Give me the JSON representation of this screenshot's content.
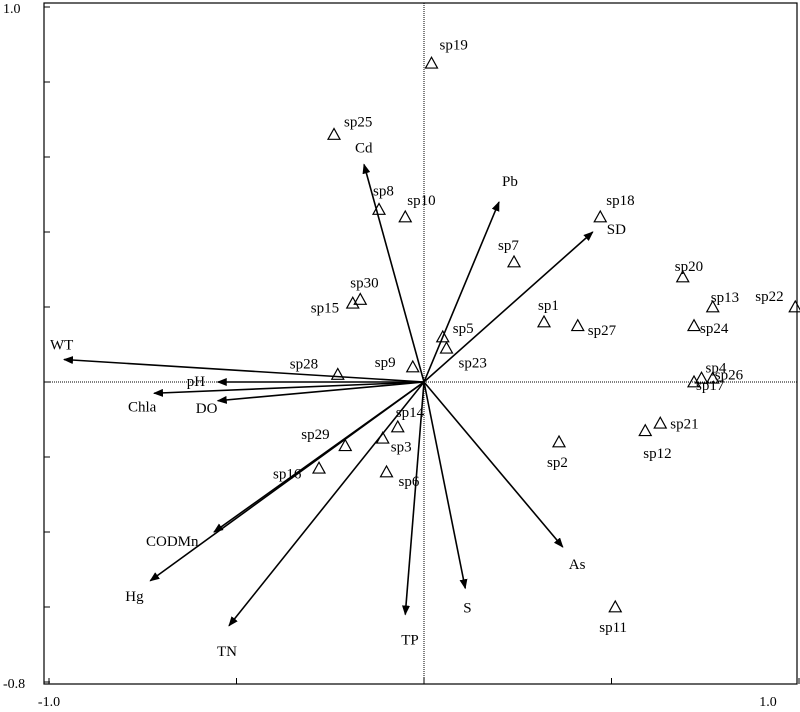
{
  "chart_data": {
    "type": "scatter",
    "title": "",
    "xlabel": "",
    "ylabel": "",
    "xlim": [
      -1.0,
      1.0
    ],
    "ylim": [
      -0.8,
      1.0
    ],
    "x_tick_labels": [
      {
        "value": -1.0,
        "label": "-1.0"
      },
      {
        "value": 1.0,
        "label": "1.0"
      }
    ],
    "y_tick_labels": [
      {
        "value": 1.0,
        "label": "1.0"
      },
      {
        "value": -0.8,
        "label": "-0.8"
      }
    ],
    "grid": false,
    "zero_lines": "dotted",
    "vectors": [
      {
        "label": "WT",
        "x": -0.96,
        "y": 0.06
      },
      {
        "label": "pH",
        "x": -0.55,
        "y": 0.0
      },
      {
        "label": "Chla",
        "x": -0.72,
        "y": -0.03
      },
      {
        "label": "DO",
        "x": -0.55,
        "y": -0.05
      },
      {
        "label": "Cd",
        "x": -0.16,
        "y": 0.58
      },
      {
        "label": "Pb",
        "x": 0.2,
        "y": 0.48
      },
      {
        "label": "SD",
        "x": 0.45,
        "y": 0.4
      },
      {
        "label": "As",
        "x": 0.37,
        "y": -0.44
      },
      {
        "label": "S",
        "x": 0.11,
        "y": -0.55
      },
      {
        "label": "TP",
        "x": -0.05,
        "y": -0.62
      },
      {
        "label": "TN",
        "x": -0.52,
        "y": -0.65
      },
      {
        "label": "Hg",
        "x": -0.73,
        "y": -0.53
      },
      {
        "label": "CODMn",
        "x": -0.56,
        "y": -0.4
      }
    ],
    "species": [
      {
        "label": "sp19",
        "x": 0.02,
        "y": 0.85
      },
      {
        "label": "sp25",
        "x": -0.24,
        "y": 0.66
      },
      {
        "label": "sp8",
        "x": -0.12,
        "y": 0.46
      },
      {
        "label": "sp10",
        "x": -0.05,
        "y": 0.44
      },
      {
        "label": "sp18",
        "x": 0.47,
        "y": 0.44
      },
      {
        "label": "sp7",
        "x": 0.24,
        "y": 0.32
      },
      {
        "label": "sp30",
        "x": -0.17,
        "y": 0.22
      },
      {
        "label": "sp15",
        "x": -0.19,
        "y": 0.21
      },
      {
        "label": "sp1",
        "x": 0.32,
        "y": 0.16
      },
      {
        "label": "sp27",
        "x": 0.41,
        "y": 0.15
      },
      {
        "label": "sp20",
        "x": 0.69,
        "y": 0.28
      },
      {
        "label": "sp13",
        "x": 0.77,
        "y": 0.2
      },
      {
        "label": "sp22",
        "x": 0.99,
        "y": 0.2
      },
      {
        "label": "sp24",
        "x": 0.72,
        "y": 0.15
      },
      {
        "label": "sp5",
        "x": 0.05,
        "y": 0.12
      },
      {
        "label": "sp23",
        "x": 0.06,
        "y": 0.09
      },
      {
        "label": "sp9",
        "x": -0.03,
        "y": 0.04
      },
      {
        "label": "sp28",
        "x": -0.23,
        "y": 0.02
      },
      {
        "label": "sp4",
        "x": 0.74,
        "y": 0.01
      },
      {
        "label": "sp26",
        "x": 0.77,
        "y": 0.01
      },
      {
        "label": "sp17",
        "x": 0.72,
        "y": 0.0
      },
      {
        "label": "sp14",
        "x": -0.07,
        "y": -0.12
      },
      {
        "label": "sp3",
        "x": -0.11,
        "y": -0.15
      },
      {
        "label": "sp29",
        "x": -0.21,
        "y": -0.17
      },
      {
        "label": "sp16",
        "x": -0.28,
        "y": -0.23
      },
      {
        "label": "sp6",
        "x": -0.1,
        "y": -0.24
      },
      {
        "label": "sp2",
        "x": 0.36,
        "y": -0.16
      },
      {
        "label": "sp21",
        "x": 0.63,
        "y": -0.11
      },
      {
        "label": "sp12",
        "x": 0.59,
        "y": -0.13
      },
      {
        "label": "sp11",
        "x": 0.51,
        "y": -0.6
      }
    ]
  }
}
